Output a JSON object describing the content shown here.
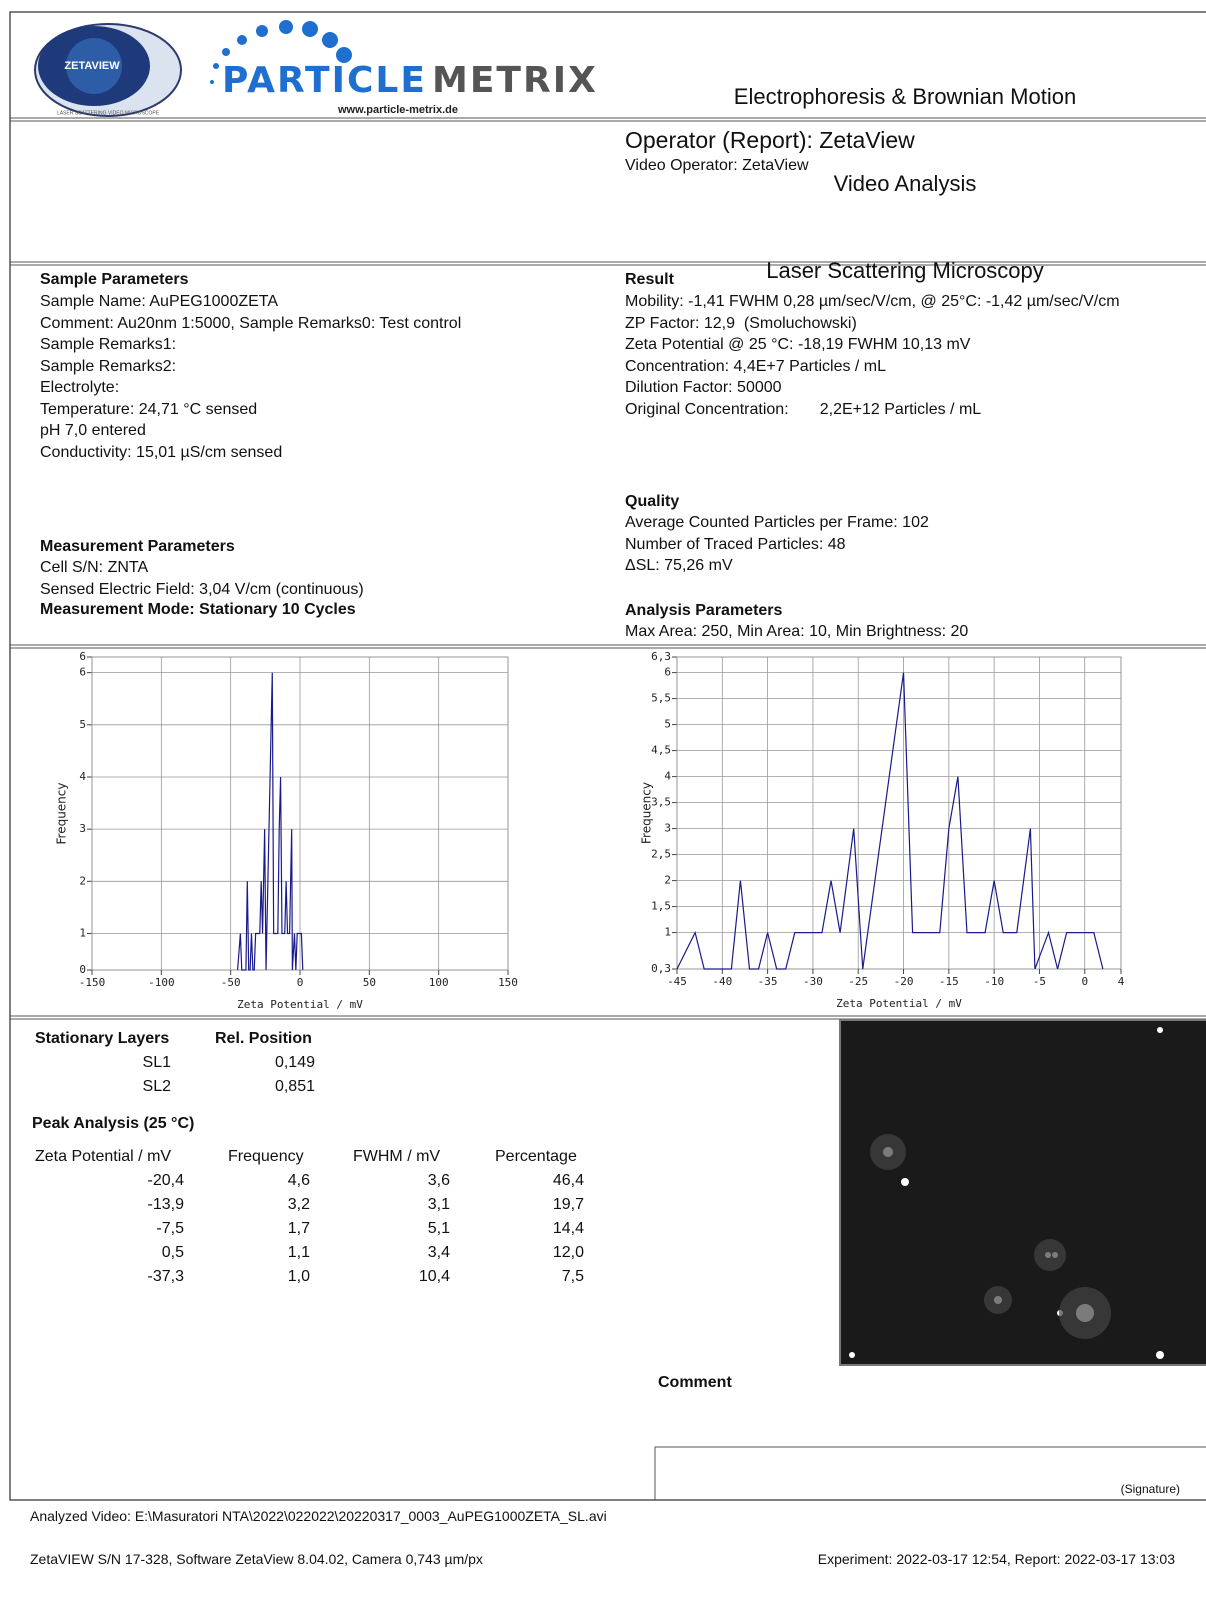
{
  "header": {
    "logo_name": "ZETAVIEW",
    "logo_tagline": "LASER SCATTERING VIDEO MICROSCOPE",
    "brand_first": "PARTICLE",
    "brand_second": "METRIX",
    "website": "www.particle-metrix.de",
    "title_lines": [
      "Electrophoresis & Brownian Motion",
      "Video Analysis",
      "Laser Scattering Microscopy"
    ]
  },
  "operator": {
    "report": "Operator (Report): ZetaView",
    "video": "Video Operator: ZetaView"
  },
  "sample_parameters": {
    "heading": "Sample Parameters",
    "lines": [
      "Sample Name: AuPEG1000ZETA",
      "Comment: Au20nm 1:5000, Sample Remarks0: Test control",
      "Sample Remarks1:",
      "Sample Remarks2:",
      "Electrolyte:",
      "Temperature: 24,71 °C sensed",
      "pH 7,0 entered",
      "Conductivity: 15,01 µS/cm sensed"
    ]
  },
  "result": {
    "heading": "Result",
    "lines": [
      "Mobility: -1,41 FWHM 0,28 µm/sec/V/cm, @ 25°C: -1,42 µm/sec/V/cm",
      "ZP Factor: 12,9  (Smoluchowski)",
      "Zeta Potential @ 25 °C: -18,19 FWHM 10,13 mV",
      "Concentration: 4,4E+7 Particles / mL",
      "Dilution Factor: 50000",
      "Original Concentration:       2,2E+12 Particles / mL"
    ]
  },
  "quality": {
    "heading": "Quality",
    "lines": [
      "Average Counted Particles per Frame: 102",
      "Number of Traced Particles: 48",
      "ΔSL: 75,26 mV"
    ]
  },
  "measurement_parameters": {
    "heading": "Measurement Parameters",
    "lines": [
      "Cell S/N: ZNTA",
      "Sensed Electric Field: 3,04 V/cm (continuous)"
    ],
    "mode": "Measurement Mode: Stationary 10 Cycles"
  },
  "analysis_parameters": {
    "heading": "Analysis Parameters",
    "line": "Max Area: 250, Min Area: 10, Min Brightness: 20"
  },
  "chart_data": [
    {
      "type": "line",
      "x_label": "Zeta Potential / mV",
      "y_label": "Frequency",
      "color": "#1a1a8c",
      "grid": true,
      "x": [
        -45,
        -43,
        -42,
        -39,
        -38,
        -37,
        -36,
        -35,
        -34,
        -33,
        -32,
        -29,
        -28,
        -27,
        -25.5,
        -24.5,
        -20,
        -19,
        -16,
        -15,
        -14,
        -13,
        -11,
        -10,
        -9,
        -7.5,
        -6,
        -5.5,
        -4,
        -3,
        -2,
        1,
        2
      ],
      "values": [
        0.3,
        1,
        0.3,
        0.3,
        2,
        0.3,
        0.3,
        1,
        0.3,
        0.3,
        1,
        1,
        2,
        1,
        3,
        0.3,
        6,
        1,
        1,
        3,
        4,
        1,
        1,
        2,
        1,
        1,
        3,
        0.3,
        1,
        0.3,
        1,
        1,
        0.3
      ],
      "xlim": [
        -150,
        150
      ],
      "xticks": [
        -150,
        -100,
        -50,
        0,
        50,
        100,
        150
      ],
      "ylim": [
        0.3,
        6.3
      ],
      "yticks": [
        {
          "value": 0.3,
          "label": "0"
        },
        1,
        2,
        3,
        4,
        5,
        6,
        {
          "value": 6.3,
          "label": "6"
        }
      ]
    },
    {
      "type": "line",
      "x_label": "Zeta Potential / mV",
      "y_label": "Frequency",
      "color": "#1a1a8c",
      "grid": true,
      "x": [
        -45,
        -43,
        -42,
        -39,
        -38,
        -37,
        -36,
        -35,
        -34,
        -33,
        -32,
        -29,
        -28,
        -27,
        -25.5,
        -24.5,
        -20,
        -19,
        -16,
        -15,
        -14,
        -13,
        -11,
        -10,
        -9,
        -7.5,
        -6,
        -5.5,
        -4,
        -3,
        -2,
        1,
        2
      ],
      "values": [
        0.3,
        1,
        0.3,
        0.3,
        2,
        0.3,
        0.3,
        1,
        0.3,
        0.3,
        1,
        1,
        2,
        1,
        3,
        0.3,
        6,
        1,
        1,
        3,
        4,
        1,
        1,
        2,
        1,
        1,
        3,
        0.3,
        1,
        0.3,
        1,
        1,
        0.3
      ],
      "xlim": [
        -45,
        4
      ],
      "xticks": [
        -45,
        -40,
        -35,
        -30,
        -25,
        -20,
        -15,
        -10,
        -5,
        0,
        4
      ],
      "ylim": [
        0.3,
        6.3
      ],
      "yticks": [
        {
          "value": 0.3,
          "label": "0,3"
        },
        1,
        {
          "value": 1.5,
          "label": "1,5"
        },
        2,
        {
          "value": 2.5,
          "label": "2,5"
        },
        3,
        {
          "value": 3.5,
          "label": "3,5"
        },
        4,
        {
          "value": 4.5,
          "label": "4,5"
        },
        5,
        {
          "value": 5.5,
          "label": "5,5"
        },
        6,
        {
          "value": 6.3,
          "label": "6,3"
        }
      ]
    }
  ],
  "stationary_layers": {
    "headers": [
      "Stationary Layers",
      "Rel. Position"
    ],
    "rows": [
      [
        "SL1",
        "0,149"
      ],
      [
        "SL2",
        "0,851"
      ]
    ]
  },
  "peak_analysis": {
    "title": "Peak Analysis (25 °C)",
    "headers": [
      "Zeta Potential / mV",
      "Frequency",
      "FWHM / mV",
      "Percentage"
    ],
    "rows": [
      [
        "-20,4",
        "4,6",
        "3,6",
        "46,4"
      ],
      [
        "-13,9",
        "3,2",
        "3,1",
        "19,7"
      ],
      [
        "-7,5",
        "1,7",
        "5,1",
        "14,4"
      ],
      [
        "0,5",
        "1,1",
        "3,4",
        "12,0"
      ],
      [
        "-37,3",
        "1,0",
        "10,4",
        "7,5"
      ]
    ]
  },
  "comment": {
    "heading": "Comment",
    "signature": "(Signature)"
  },
  "footer": {
    "video": "Analyzed Video: E:\\Masuratori NTA\\2022\\022022\\20220317_0003_AuPEG1000ZETA_SL.avi",
    "software": "ZetaVIEW S/N 17-328, Software ZetaView 8.04.02, Camera 0,743 µm/px",
    "timestamps": "Experiment: 2022-03-17 12:54, Report: 2022-03-17 13:03"
  }
}
